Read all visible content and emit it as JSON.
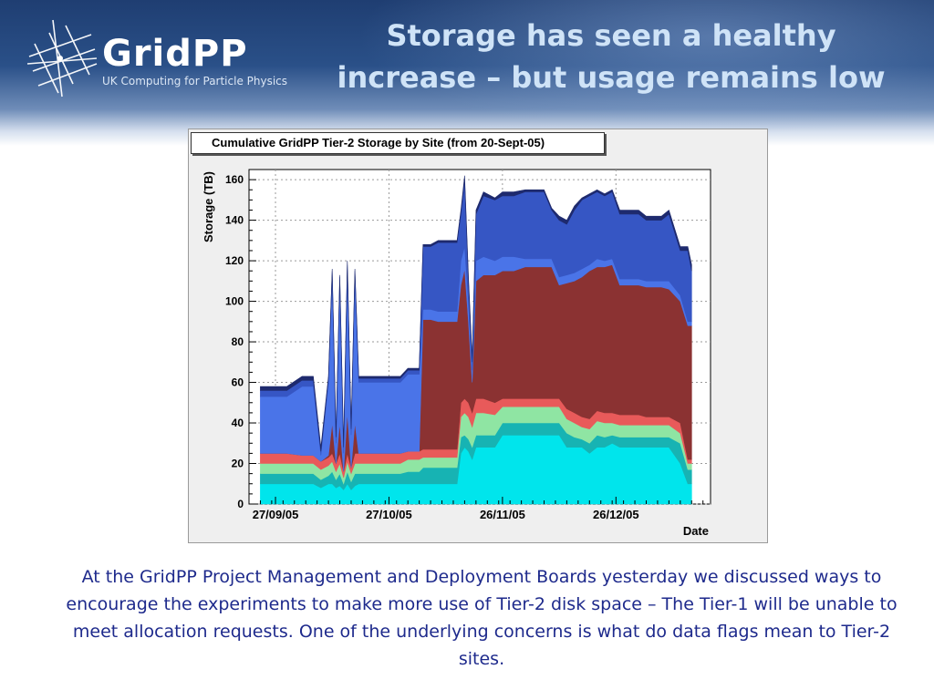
{
  "header": {
    "logo_text": "GridPP",
    "logo_subtitle": "UK Computing for Particle Physics",
    "title_line1": "Storage has seen a healthy",
    "title_line2": "increase – but usage remains low"
  },
  "body_text": "At the GridPP Project Management and Deployment Boards yesterday we discussed ways to encourage the experiments to make more use of Tier-2 disk space – The Tier-1 will be unable to meet allocation requests. One of the underlying concerns is what do data flags mean to Tier-2 sites.",
  "chart_data": {
    "type": "area",
    "stacked": true,
    "title": "Cumulative GridPP Tier-2 Storage by Site (from 20-Sept-05)",
    "xlabel": "Date",
    "ylabel": "Storage (TB)",
    "x_axis": {
      "kind": "date",
      "min": "2005-09-20",
      "max": "2006-01-20",
      "tick_labels": [
        {
          "date": "2005-09-27",
          "label": "27/09/05"
        },
        {
          "date": "2005-10-27",
          "label": "27/10/05"
        },
        {
          "date": "2005-11-26",
          "label": "26/11/05"
        },
        {
          "date": "2005-12-26",
          "label": "26/12/05"
        }
      ]
    },
    "ylim": [
      0,
      165
    ],
    "yticks": [
      0,
      20,
      40,
      60,
      80,
      100,
      120,
      140,
      160
    ],
    "grid": true,
    "layer_colors": [
      "#00e5ec",
      "#17b3b3",
      "#8fe5a3",
      "#e85a5a",
      "#8b3232",
      "#4a74e8",
      "#3656c4",
      "#1e2a6e"
    ],
    "cumulative_levels": [
      [
        "2005-09-23",
        0,
        10,
        15,
        20,
        25,
        25,
        53,
        56,
        58
      ],
      [
        "2005-09-30",
        0,
        10,
        15,
        20,
        25,
        25,
        53,
        56,
        58
      ],
      [
        "2005-10-04",
        0,
        10,
        15,
        20,
        24,
        24,
        58,
        61,
        63
      ],
      [
        "2005-10-07",
        0,
        10,
        15,
        20,
        24,
        24,
        58,
        61,
        63
      ],
      [
        "2005-10-09",
        0,
        8,
        12,
        17,
        21,
        21,
        24,
        26,
        28
      ],
      [
        "2005-10-11",
        0,
        10,
        14,
        19,
        23,
        24,
        60,
        62,
        63
      ],
      [
        "2005-10-12",
        0,
        10,
        16,
        21,
        25,
        40,
        112,
        115,
        116
      ],
      [
        "2005-10-13",
        0,
        8,
        12,
        16,
        20,
        20,
        30,
        33,
        35
      ],
      [
        "2005-10-14",
        0,
        9,
        15,
        20,
        25,
        40,
        108,
        112,
        113
      ],
      [
        "2005-10-15",
        0,
        7,
        10,
        13,
        16,
        16,
        25,
        28,
        30
      ],
      [
        "2005-10-16",
        0,
        10,
        16,
        21,
        25,
        45,
        115,
        118,
        120
      ],
      [
        "2005-10-17",
        0,
        7,
        11,
        15,
        18,
        18,
        34,
        37,
        39
      ],
      [
        "2005-10-18",
        0,
        9,
        15,
        20,
        25,
        40,
        112,
        115,
        116
      ],
      [
        "2005-10-19",
        0,
        10,
        15,
        20,
        25,
        25,
        60,
        62,
        63
      ],
      [
        "2005-10-30",
        0,
        10,
        15,
        20,
        25,
        25,
        60,
        62,
        63
      ],
      [
        "2005-11-01",
        0,
        10,
        16,
        22,
        26,
        26,
        64,
        66,
        67
      ],
      [
        "2005-11-04",
        0,
        10,
        16,
        22,
        26,
        26,
        64,
        66,
        67
      ],
      [
        "2005-11-05",
        0,
        10,
        18,
        23,
        27,
        91,
        96,
        127,
        128
      ],
      [
        "2005-11-07",
        0,
        10,
        18,
        23,
        27,
        91,
        96,
        127,
        128
      ],
      [
        "2005-11-09",
        0,
        10,
        18,
        23,
        27,
        90,
        95,
        129,
        130
      ],
      [
        "2005-11-14",
        0,
        10,
        18,
        23,
        27,
        90,
        95,
        129,
        130
      ],
      [
        "2005-11-15",
        0,
        25,
        33,
        43,
        50,
        108,
        120,
        143,
        145
      ],
      [
        "2005-11-16",
        0,
        28,
        34,
        45,
        52,
        116,
        127,
        160,
        162
      ],
      [
        "2005-11-17",
        0,
        26,
        32,
        43,
        50,
        90,
        100,
        110,
        112
      ],
      [
        "2005-11-18",
        0,
        22,
        28,
        38,
        45,
        60,
        66,
        70,
        72
      ],
      [
        "2005-11-19",
        0,
        28,
        34,
        45,
        52,
        110,
        120,
        143,
        145
      ],
      [
        "2005-11-21",
        0,
        28,
        34,
        45,
        52,
        113,
        122,
        152,
        154
      ],
      [
        "2005-11-24",
        0,
        28,
        34,
        44,
        50,
        113,
        120,
        150,
        151
      ],
      [
        "2005-11-26",
        0,
        34,
        40,
        48,
        52,
        115,
        122,
        152,
        154
      ],
      [
        "2005-11-29",
        0,
        34,
        40,
        48,
        52,
        115,
        122,
        152,
        154
      ],
      [
        "2005-12-02",
        0,
        34,
        40,
        48,
        52,
        117,
        121,
        154,
        155
      ],
      [
        "2005-12-07",
        0,
        34,
        40,
        48,
        52,
        117,
        121,
        154,
        155
      ],
      [
        "2005-12-09",
        0,
        34,
        40,
        48,
        52,
        117,
        121,
        145,
        146
      ],
      [
        "2005-12-11",
        0,
        34,
        40,
        48,
        52,
        108,
        112,
        140,
        142
      ],
      [
        "2005-12-13",
        0,
        28,
        35,
        42,
        47,
        109,
        113,
        138,
        140
      ],
      [
        "2005-12-15",
        0,
        28,
        33,
        40,
        45,
        110,
        114,
        145,
        147
      ],
      [
        "2005-12-17",
        0,
        28,
        32,
        38,
        43,
        112,
        116,
        150,
        151
      ],
      [
        "2005-12-19",
        0,
        25,
        30,
        37,
        42,
        115,
        118,
        152,
        153
      ],
      [
        "2005-12-21",
        0,
        28,
        34,
        41,
        46,
        117,
        121,
        154,
        155
      ],
      [
        "2005-12-23",
        0,
        28,
        33,
        40,
        45,
        117,
        120,
        152,
        153
      ],
      [
        "2005-12-25",
        0,
        30,
        34,
        40,
        45,
        118,
        121,
        154,
        155
      ],
      [
        "2005-12-27",
        0,
        28,
        33,
        39,
        44,
        108,
        111,
        143,
        145
      ],
      [
        "2006-01-01",
        0,
        28,
        33,
        39,
        44,
        108,
        111,
        143,
        145
      ],
      [
        "2006-01-03",
        0,
        28,
        33,
        39,
        43,
        107,
        110,
        140,
        142
      ],
      [
        "2006-01-07",
        0,
        28,
        33,
        39,
        43,
        107,
        110,
        140,
        142
      ],
      [
        "2006-01-09",
        0,
        28,
        33,
        39,
        43,
        106,
        110,
        143,
        145
      ],
      [
        "2006-01-12",
        0,
        20,
        30,
        35,
        40,
        100,
        103,
        125,
        127
      ],
      [
        "2006-01-14",
        0,
        10,
        17,
        20,
        22,
        88,
        90,
        125,
        127
      ],
      [
        "2006-01-15",
        0,
        10,
        17,
        20,
        22,
        88,
        90,
        115,
        118
      ]
    ]
  }
}
